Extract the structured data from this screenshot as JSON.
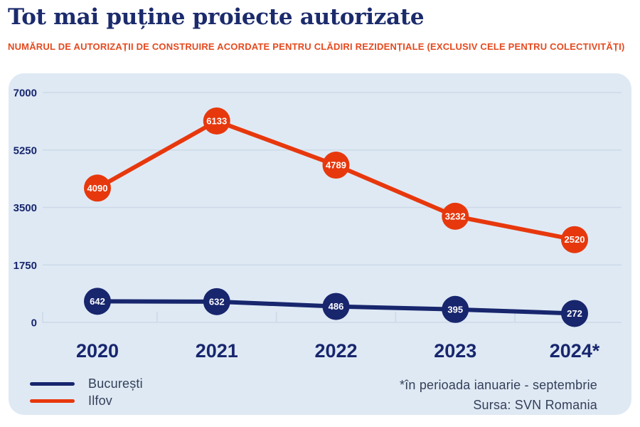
{
  "header": {
    "title": "Tot mai puține proiecte autorizate",
    "subtitle": "NUMĂRUL DE AUTORIZAȚII DE CONSTRUIRE ACORDATE PENTRU CLĂDIRI REZIDENȚIALE (EXCLUSIV CELE PENTRU COLECTIVITĂȚI)"
  },
  "chart_data": {
    "type": "line",
    "title": "Tot mai puține proiecte autorizate",
    "categories": [
      "2020",
      "2021",
      "2022",
      "2023",
      "2024*"
    ],
    "series": [
      {
        "name": "București",
        "color": "#17266d",
        "values": [
          642,
          632,
          486,
          395,
          272
        ]
      },
      {
        "name": "Ilfov",
        "color": "#e7380d",
        "values": [
          4090,
          6133,
          4789,
          3232,
          2520
        ]
      }
    ],
    "yticks": [
      0,
      1750,
      3500,
      5250,
      7000
    ],
    "ylim": [
      0,
      7000
    ],
    "grid": true,
    "point_labels": true,
    "legend_position": "bottom-left"
  },
  "colors": {
    "title_color": "#1b2b6c",
    "subtitle_color": "#e54a1f",
    "panel_bg": "#dfe9f4",
    "gridline": "#cdd9e8",
    "axis_label": "#17266d",
    "note_text": "#333f58"
  },
  "notes": {
    "footnote": "*în perioada ianuarie - septembrie",
    "source": "Sursa: SVN Romania"
  }
}
